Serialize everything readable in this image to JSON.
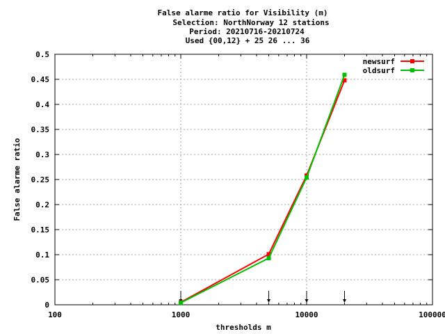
{
  "chart_data": {
    "type": "line",
    "title_lines": [
      "False alarme ratio  for Visibility (m)",
      "Selection: NorthNorway     12 stations",
      "Period: 20210716-20210724",
      "Used {00,12} + 25 26 ... 36"
    ],
    "xlabel": "thresholds m",
    "ylabel": "False alarme ratio",
    "x_scale": "log",
    "xlim": [
      100,
      100000
    ],
    "ylim": [
      0,
      0.5
    ],
    "x_ticks": [
      100,
      1000,
      10000,
      100000
    ],
    "x_tick_labels": [
      "100",
      "1000",
      "10000",
      "100000"
    ],
    "y_ticks": [
      0,
      0.05,
      0.1,
      0.15,
      0.2,
      0.25,
      0.3,
      0.35,
      0.4,
      0.45,
      0.5
    ],
    "y_tick_labels": [
      "0",
      "0.05",
      "0.1",
      "0.15",
      "0.2",
      "0.25",
      "0.3",
      "0.35",
      "0.4",
      "0.45",
      "0.5"
    ],
    "grid": true,
    "legend_position": "top-right",
    "threshold_markers": [
      1000,
      5000,
      10000,
      20000
    ],
    "series": [
      {
        "name": "newsurf",
        "color": "#ff0000",
        "x": [
          1000,
          5000,
          10000,
          20000
        ],
        "y": [
          0.005,
          0.101,
          0.258,
          0.448
        ]
      },
      {
        "name": "oldsurf",
        "color": "#00c000",
        "x": [
          1000,
          5000,
          10000,
          20000
        ],
        "y": [
          0.004,
          0.093,
          0.254,
          0.459
        ]
      }
    ]
  }
}
